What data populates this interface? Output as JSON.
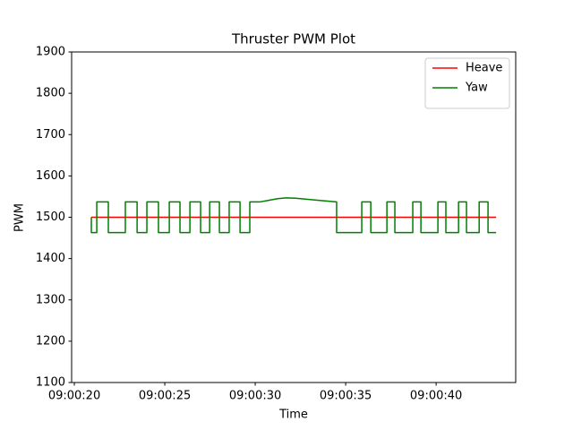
{
  "chart_data": {
    "type": "line",
    "title": "Thruster PWM Plot",
    "x_label": "Time",
    "y_label": "PWM",
    "xlim": [
      19.85,
      44.4
    ],
    "ylim": [
      1100,
      1900
    ],
    "xticks": [
      {
        "value": 20,
        "label": "09:00:20"
      },
      {
        "value": 25,
        "label": "09:00:25"
      },
      {
        "value": 30,
        "label": "09:00:30"
      },
      {
        "value": 35,
        "label": "09:00:35"
      },
      {
        "value": 40,
        "label": "09:00:40"
      }
    ],
    "yticks": [
      1100,
      1200,
      1300,
      1400,
      1500,
      1600,
      1700,
      1800,
      1900
    ],
    "legend": "upper right",
    "series": [
      {
        "name": "Heave",
        "color": "#ff0000",
        "x": [
          20.94,
          43.32
        ],
        "values": [
          1500,
          1500
        ]
      },
      {
        "name": "Yaw",
        "color": "#008000",
        "x": [
          20.94,
          20.94,
          21.24,
          21.24,
          21.88,
          21.88,
          22.82,
          22.82,
          23.47,
          23.47,
          24.01,
          24.01,
          24.65,
          24.65,
          25.25,
          25.25,
          25.84,
          25.84,
          26.39,
          26.39,
          26.98,
          26.98,
          27.48,
          27.48,
          28.02,
          28.02,
          28.56,
          28.56,
          29.16,
          29.16,
          29.7,
          29.7,
          30.25,
          30.74,
          31.24,
          31.73,
          32.23,
          32.97,
          33.71,
          34.5,
          34.5,
          35.89,
          35.89,
          36.39,
          36.39,
          37.28,
          37.28,
          37.72,
          37.72,
          38.71,
          38.71,
          39.16,
          39.16,
          40.1,
          40.1,
          40.54,
          40.54,
          41.24,
          41.24,
          41.68,
          41.68,
          42.38,
          42.38,
          42.87,
          42.87,
          43.32
        ],
        "values": [
          1500,
          1463,
          1463,
          1537,
          1537,
          1463,
          1463,
          1537,
          1537,
          1463,
          1463,
          1537,
          1537,
          1463,
          1463,
          1537,
          1537,
          1463,
          1463,
          1537,
          1537,
          1463,
          1463,
          1537,
          1537,
          1463,
          1463,
          1537,
          1537,
          1463,
          1463,
          1537,
          1537,
          1541,
          1545,
          1547,
          1546,
          1543,
          1540,
          1537,
          1463,
          1463,
          1537,
          1537,
          1463,
          1463,
          1537,
          1537,
          1463,
          1463,
          1537,
          1537,
          1463,
          1463,
          1537,
          1537,
          1463,
          1463,
          1537,
          1537,
          1463,
          1463,
          1537,
          1537,
          1463,
          1463
        ]
      }
    ]
  }
}
